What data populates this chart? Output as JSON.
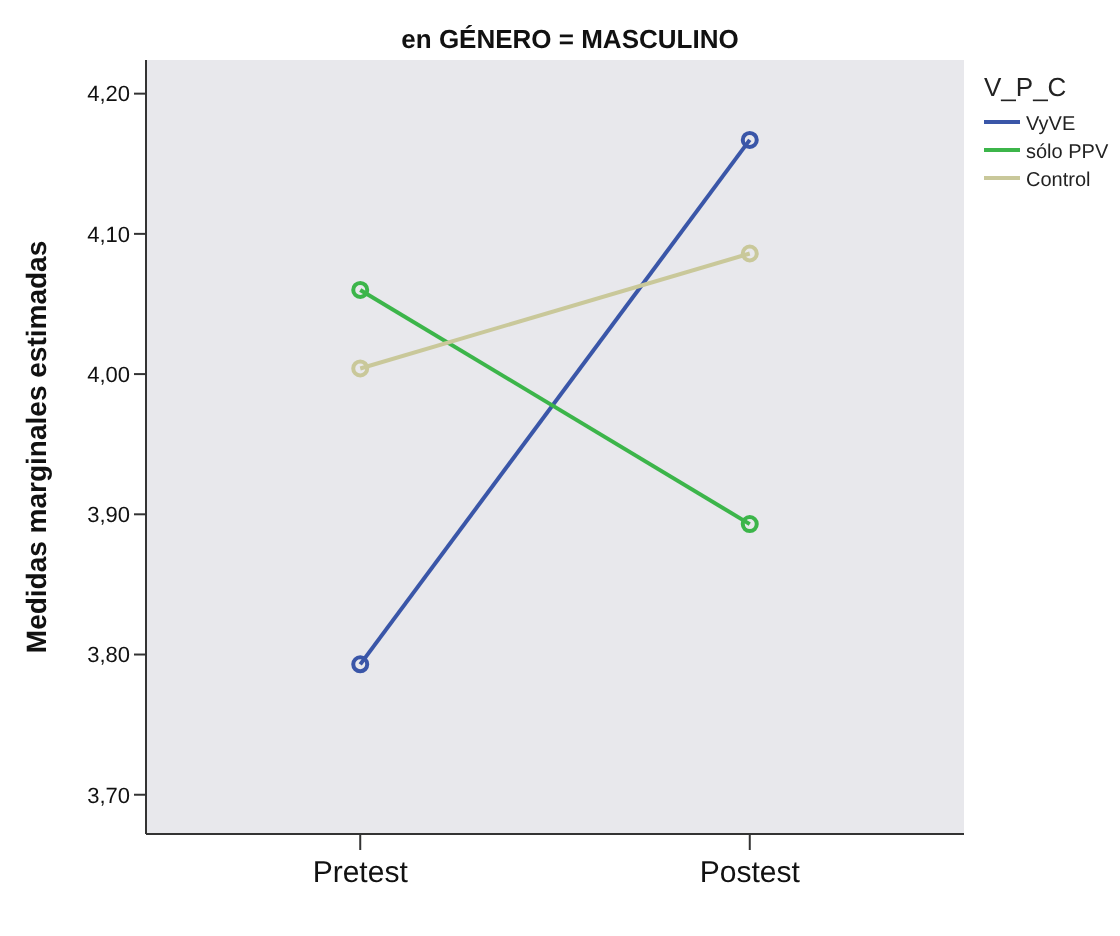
{
  "chart_data": {
    "type": "line",
    "title": "en GÉNERO = MASCULINO",
    "ylabel": "Medidas marginales estimadas",
    "legend_title": "V_P_C",
    "legend": "top right",
    "marker": "circle",
    "grid": false,
    "categories": [
      "Pretest",
      "Postest"
    ],
    "ylim": [
      3.672,
      4.224
    ],
    "yticks": [
      {
        "value": 3.7,
        "label": "3,70"
      },
      {
        "value": 3.8,
        "label": "3,80"
      },
      {
        "value": 3.9,
        "label": "3,90"
      },
      {
        "value": 4.0,
        "label": "4,00"
      },
      {
        "value": 4.1,
        "label": "4,10"
      },
      {
        "value": 4.2,
        "label": "4,20"
      }
    ],
    "series": [
      {
        "name": "VyVE",
        "color": "#3a56a8",
        "values": [
          3.793,
          4.167
        ]
      },
      {
        "name": "sólo PPV",
        "color": "#3cb54a",
        "values": [
          4.06,
          3.893
        ]
      },
      {
        "name": "Control",
        "color": "#c9c89a",
        "values": [
          4.004,
          4.086
        ]
      }
    ]
  }
}
